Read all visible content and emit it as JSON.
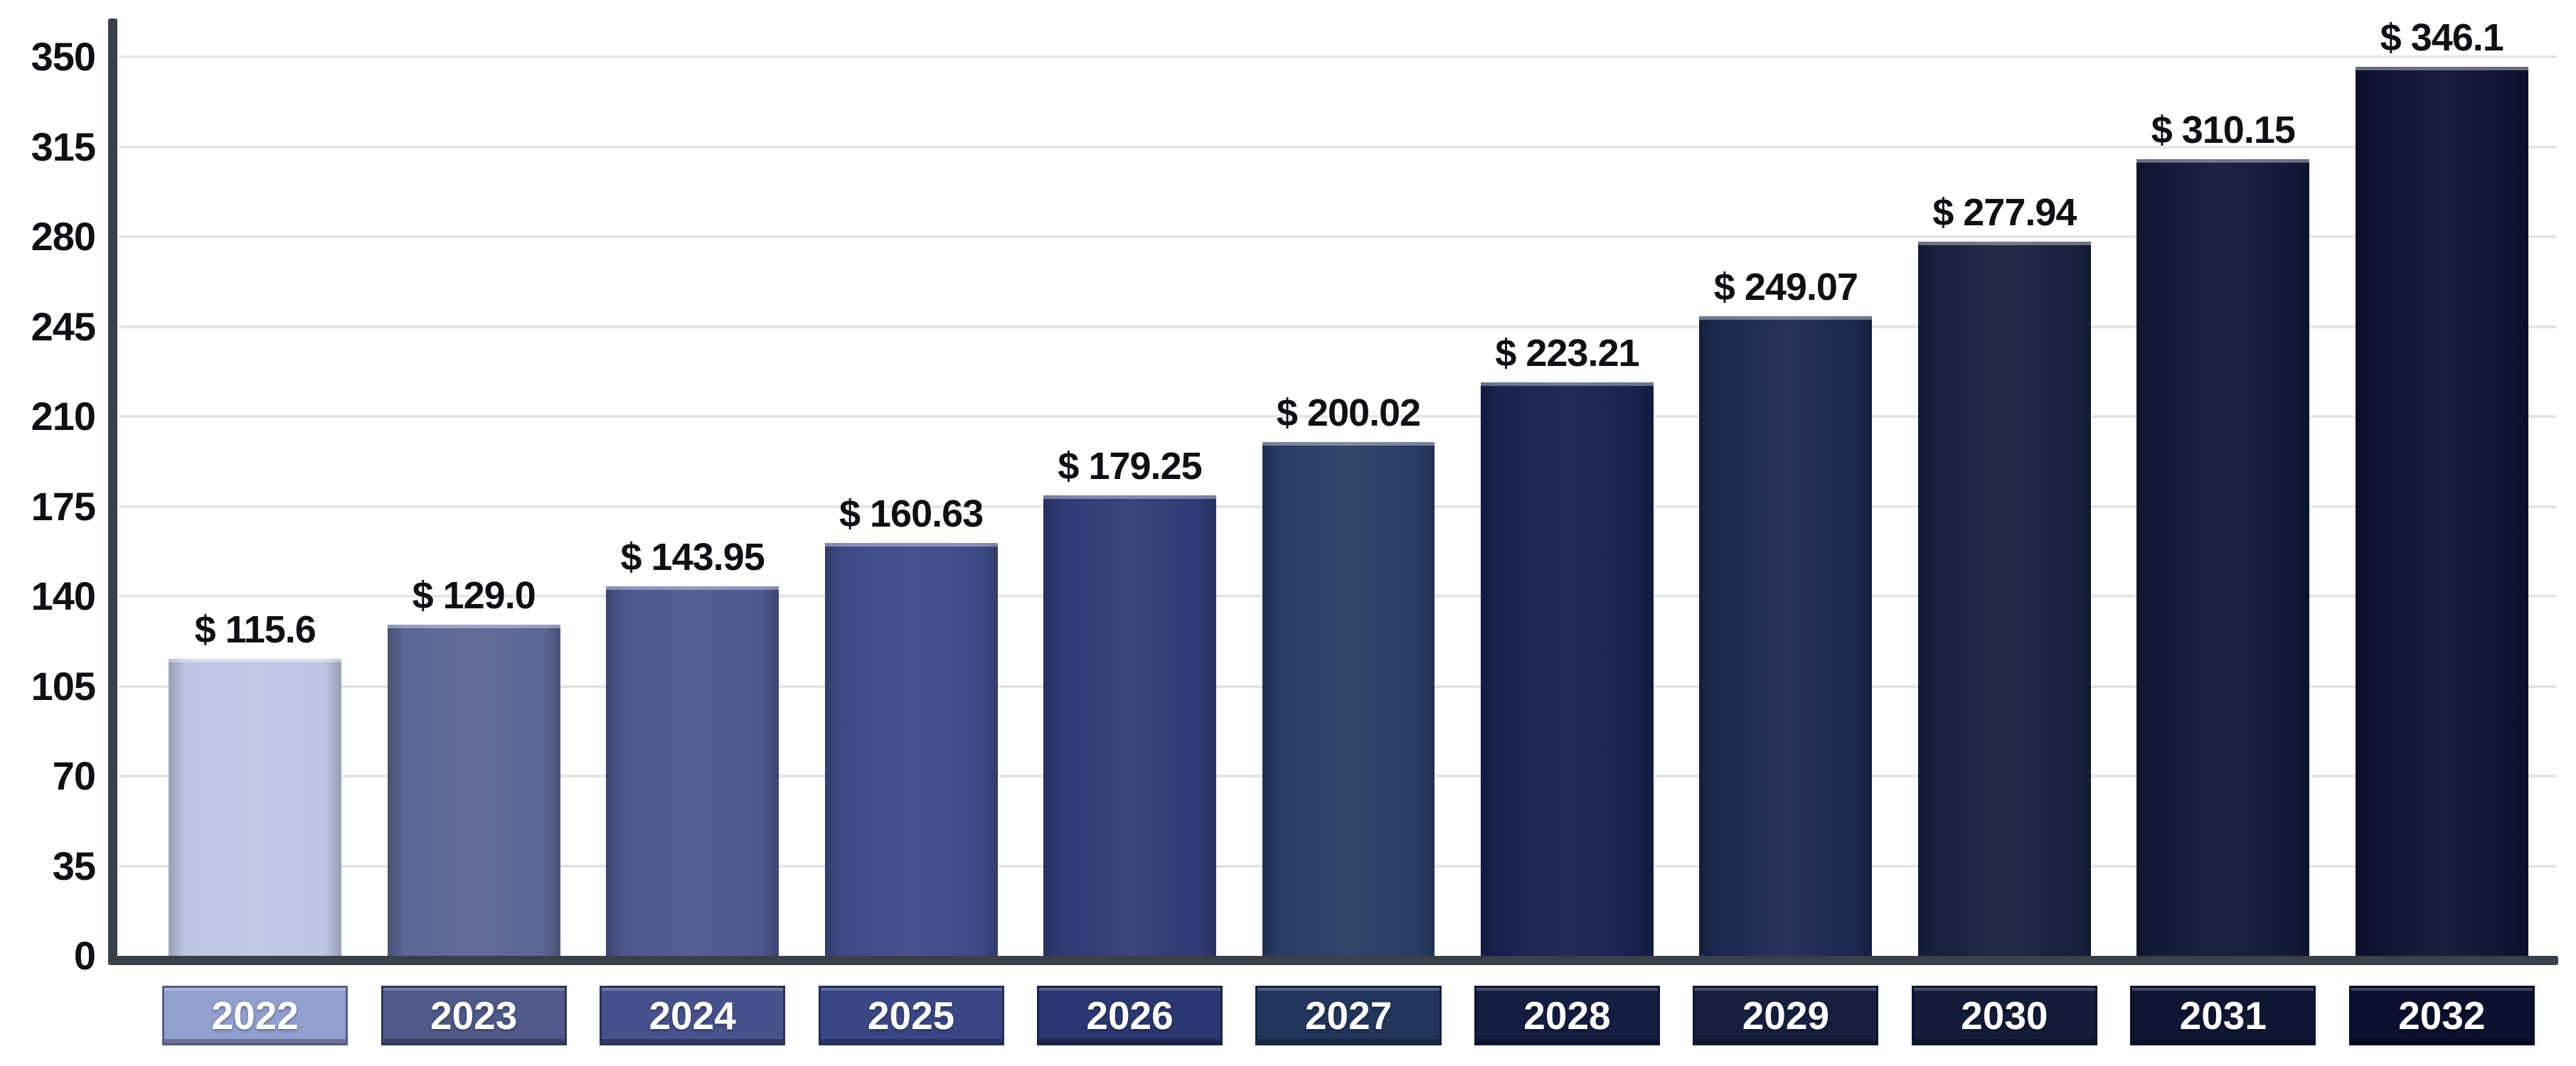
{
  "chart_data": {
    "type": "bar",
    "title": "",
    "xlabel": "",
    "ylabel": "",
    "categories": [
      "2022",
      "2023",
      "2024",
      "2025",
      "2026",
      "2027",
      "2028",
      "2029",
      "2030",
      "2031",
      "2032"
    ],
    "values": [
      115.6,
      129.0,
      143.95,
      160.63,
      179.25,
      200.02,
      223.21,
      249.07,
      277.94,
      310.15,
      346.1
    ],
    "value_labels": [
      "$ 115.6",
      "$ 129.0",
      "$ 143.95",
      "$ 160.63",
      "$ 179.25",
      "$ 200.02",
      "$ 223.21",
      "$ 249.07",
      "$ 277.94",
      "$ 310.15",
      "$ 346.1"
    ],
    "ylim": [
      0,
      350
    ],
    "y_ticks": [
      0,
      35,
      70,
      105,
      140,
      175,
      210,
      245,
      280,
      315,
      350
    ],
    "y_tick_labels": [
      "0",
      "35",
      "70",
      "105",
      "140",
      "175",
      "210",
      "245",
      "280",
      "315",
      "350"
    ],
    "grid": true,
    "legend": "none",
    "bar_colors": [
      "#bcc6e3",
      "#5a6694",
      "#4b578e",
      "#3e4a87",
      "#2f3b75",
      "#283c64",
      "#17224e",
      "#1b2850",
      "#17213e",
      "#111837",
      "#0d1232"
    ],
    "year_box_colors": [
      "#93a0cf",
      "#4f5a88",
      "#46528b",
      "#3a4784",
      "#2b3770",
      "#22355c",
      "#141d42",
      "#161f40",
      "#131c38",
      "#0f1634",
      "#0b102e"
    ],
    "year_text_color": "#ffffff",
    "axis_color": "#3a3f49",
    "gridline_color": "#e4e4e7",
    "label_color": "#0f1014",
    "background_color": "#ffffff"
  }
}
